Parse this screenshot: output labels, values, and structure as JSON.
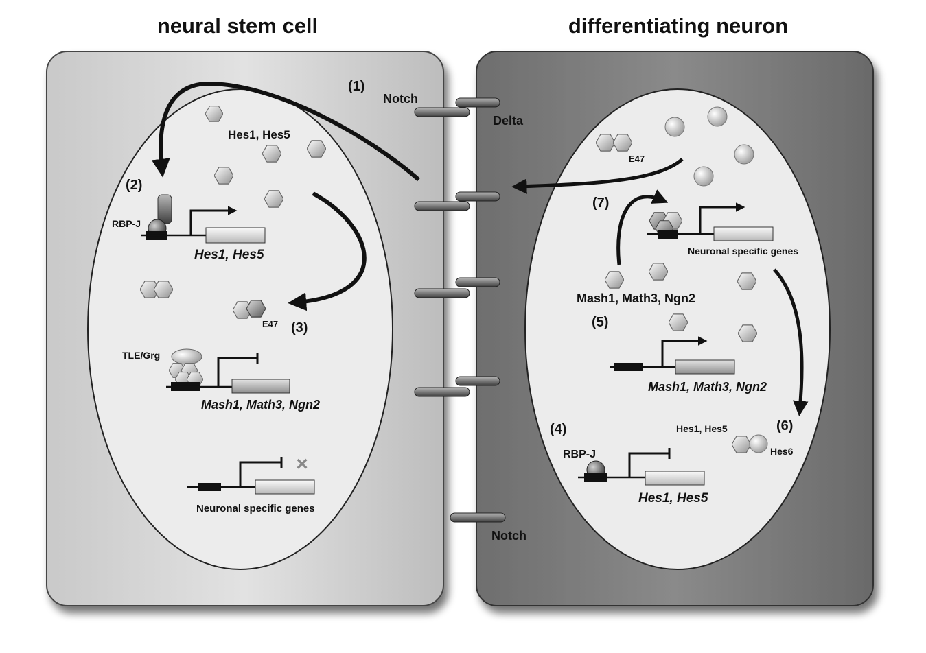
{
  "titles": {
    "left": "neural stem cell",
    "right": "differentiating neuron"
  },
  "receptors": {
    "notch_top": "Notch",
    "delta": "Delta",
    "notch_bottom": "Notch"
  },
  "left_cell": {
    "step1": "(1)",
    "step2": "(2)",
    "step3": "(3)",
    "hes_proteins": "Hes1, Hes5",
    "rbpj": "RBP-J",
    "hes_genes": "Hes1, Hes5",
    "e47": "E47",
    "tle": "TLE/Grg",
    "proneural_genes": "Mash1, Math3, Ngn2",
    "repressed_mark": "×",
    "neuronal_genes": "Neuronal specific genes"
  },
  "right_cell": {
    "e47": "E47",
    "step7": "(7)",
    "neuronal_genes": "Neuronal specific genes",
    "proneural_proteins": "Mash1, Math3, Ngn2",
    "step5": "(5)",
    "proneural_genes": "Mash1, Math3, Ngn2",
    "step4": "(4)",
    "step6": "(6)",
    "hes_proteins": "Hes1, Hes5",
    "hes6": "Hes6",
    "rbpj": "RBP-J",
    "hes_genes": "Hes1, Hes5"
  }
}
